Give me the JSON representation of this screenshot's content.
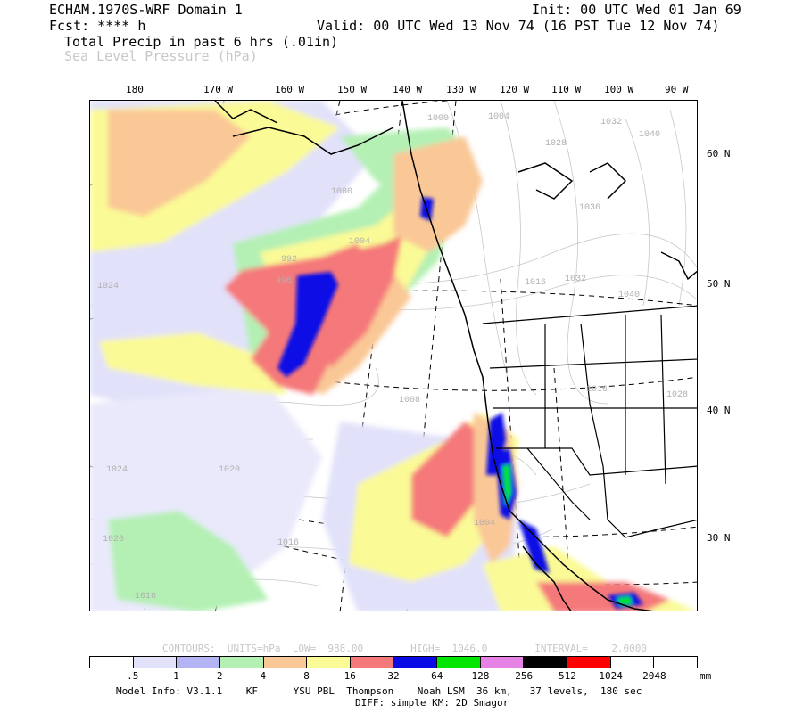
{
  "header": {
    "model_title": "ECHAM.1970S-WRF Domain 1",
    "init_time": "Init: 00 UTC Wed 01 Jan 69",
    "fcst": "Fcst: **** h",
    "valid_time": "Valid: 00 UTC Wed 13 Nov 74 (16 PST Tue 12 Nov 74)",
    "field1": "Total Precip in past 6 hrs (.01in)",
    "field2": "Sea Level Pressure (hPa)"
  },
  "longitude_labels": [
    "180",
    "170 W",
    "160 W",
    "150 W",
    "140 W",
    "130 W",
    "120 W",
    "110 W",
    "100 W",
    "90 W"
  ],
  "latitude_labels": [
    "60 N",
    "50 N",
    "40 N",
    "30 N"
  ],
  "pressure_labels": [
    "1000",
    "1004",
    "1028",
    "1036",
    "1032",
    "1040",
    "1016",
    "1032",
    "1040",
    "1024",
    "1016",
    "1028",
    "1008",
    "1004",
    "1020",
    "1024",
    "1020",
    "1016",
    "1016",
    "992",
    "996",
    "1000",
    "1004"
  ],
  "contour_info": "CONTOURS:  UNITS=hPa  LOW=  988.00        HIGH=  1046.0        INTERVAL=    2.0000",
  "scale": {
    "colors": [
      "#ffffff",
      "#e1e1fa",
      "#b4b4f5",
      "#b4f0b4",
      "#fac896",
      "#fafa96",
      "#f5787a",
      "#0a0ae6",
      "#00e600",
      "#e682e6",
      "#000000",
      "#ff0000",
      "#ffffff",
      "#ffffff"
    ],
    "labels": [
      ".5",
      "1",
      "2",
      "4",
      "8",
      "16",
      "32",
      "64",
      "128",
      "256",
      "512",
      "1024",
      "2048"
    ],
    "unit": "mm"
  },
  "footer": {
    "model_info": "Model Info: V3.1.1    KF      YSU PBL  Thompson    Noah LSM  36 km,   37 levels,  180 sec",
    "diff": "DIFF: simple KM: 2D Smagor"
  }
}
